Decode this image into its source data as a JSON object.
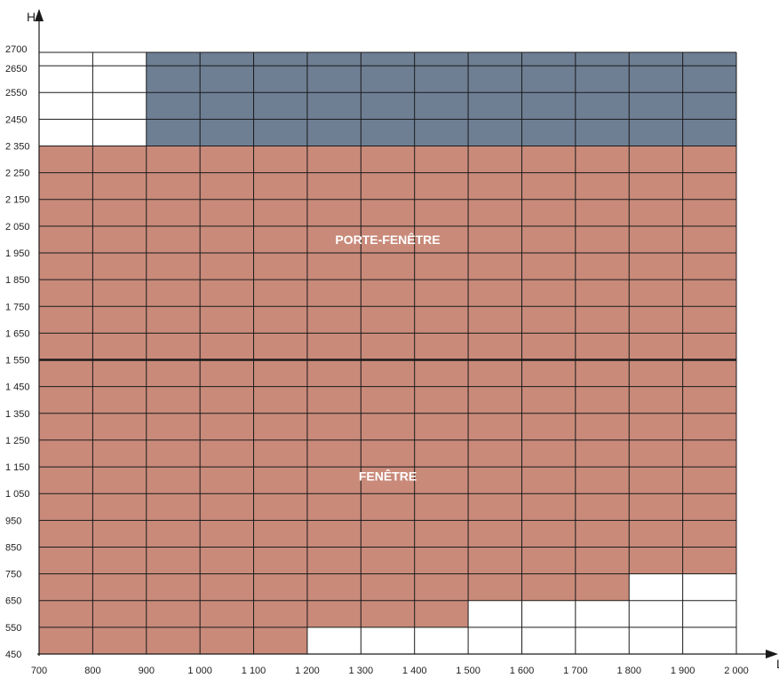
{
  "chart_data": {
    "type": "heatmap",
    "x_axis_label": "L",
    "y_axis_label": "H",
    "x_ticks": [
      700,
      800,
      900,
      1000,
      1100,
      1200,
      1300,
      1400,
      1500,
      1600,
      1700,
      1800,
      1900,
      2000
    ],
    "x_tick_labels": [
      "700",
      "800",
      "900",
      "1 000",
      "1 100",
      "1 200",
      "1 300",
      "1 400",
      "1 500",
      "1 600",
      "1 700",
      "1 800",
      "1 900",
      "2 000"
    ],
    "y_ticks": [
      450,
      550,
      650,
      750,
      850,
      950,
      1050,
      1150,
      1250,
      1350,
      1450,
      1550,
      1650,
      1750,
      1850,
      1950,
      2050,
      2150,
      2250,
      2350,
      2450,
      2550,
      2650,
      2700
    ],
    "y_tick_labels": [
      "450",
      "550",
      "650",
      "750",
      "850",
      "950",
      "1 050",
      "1 150",
      "1 250",
      "1 350",
      "1 450",
      "1 550",
      "1 650",
      "1 750",
      "1 850",
      "1 950",
      "2 050",
      "2 150",
      "2 250",
      "2 350",
      "2450",
      "2550",
      "2650",
      "2700"
    ],
    "xlim": [
      700,
      2000
    ],
    "ylim": [
      450,
      2700
    ],
    "separator_line_y": 1550,
    "regions": [
      {
        "name": "salmon",
        "color": "#c98a7a",
        "columns": [
          {
            "x": [
              700,
              800
            ],
            "y": [
              450,
              2350
            ]
          },
          {
            "x": [
              800,
              900
            ],
            "y": [
              450,
              2350
            ]
          },
          {
            "x": [
              900,
              1000
            ],
            "y": [
              450,
              2350
            ]
          },
          {
            "x": [
              1000,
              1100
            ],
            "y": [
              450,
              2350
            ]
          },
          {
            "x": [
              1100,
              1200
            ],
            "y": [
              450,
              2350
            ]
          },
          {
            "x": [
              1200,
              1300
            ],
            "y": [
              550,
              2350
            ]
          },
          {
            "x": [
              1300,
              1400
            ],
            "y": [
              550,
              2350
            ]
          },
          {
            "x": [
              1400,
              1500
            ],
            "y": [
              550,
              2350
            ]
          },
          {
            "x": [
              1500,
              1600
            ],
            "y": [
              650,
              2350
            ]
          },
          {
            "x": [
              1600,
              1700
            ],
            "y": [
              650,
              2350
            ]
          },
          {
            "x": [
              1700,
              1800
            ],
            "y": [
              650,
              2350
            ]
          },
          {
            "x": [
              1800,
              1900
            ],
            "y": [
              750,
              2350
            ]
          },
          {
            "x": [
              1900,
              2000
            ],
            "y": [
              750,
              2350
            ]
          }
        ]
      },
      {
        "name": "slate",
        "color": "#6e7f94",
        "columns": [
          {
            "x": [
              900,
              2000
            ],
            "y": [
              2350,
              2700
            ]
          }
        ]
      }
    ],
    "annotations": [
      {
        "text": "PORTE-FENÊTRE",
        "x": 1350,
        "y": 2000
      },
      {
        "text": "FENÊTRE",
        "x": 1350,
        "y": 1115
      }
    ],
    "grid": true
  }
}
